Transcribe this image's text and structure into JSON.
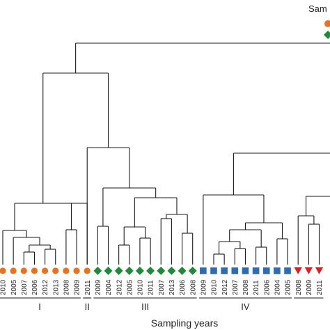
{
  "legend": {
    "title": "Sam",
    "markers": [
      {
        "shape": "circle",
        "color": "#e8731e"
      },
      {
        "shape": "diamond",
        "color": "#1f8a3a"
      }
    ]
  },
  "xlabel": "Sampling years",
  "groups": [
    "I",
    "II",
    "III",
    "IV"
  ],
  "colors": {
    "orange": "#e8731e",
    "green": "#1f8a3a",
    "blue": "#2f6db0",
    "red": "#e02020",
    "line": "#1a1a1a"
  },
  "leaves": [
    {
      "year": "2010",
      "shape": "circle",
      "color": "orange"
    },
    {
      "year": "2005",
      "shape": "circle",
      "color": "orange"
    },
    {
      "year": "2007",
      "shape": "circle",
      "color": "orange"
    },
    {
      "year": "2006",
      "shape": "circle",
      "color": "orange"
    },
    {
      "year": "2012",
      "shape": "circle",
      "color": "orange"
    },
    {
      "year": "2013",
      "shape": "circle",
      "color": "orange"
    },
    {
      "year": "2008",
      "shape": "circle",
      "color": "orange"
    },
    {
      "year": "2009",
      "shape": "circle",
      "color": "orange"
    },
    {
      "year": "2011",
      "shape": "circle",
      "color": "orange"
    },
    {
      "year": "2009",
      "shape": "diamond",
      "color": "green"
    },
    {
      "year": "2004",
      "shape": "diamond",
      "color": "green"
    },
    {
      "year": "2012",
      "shape": "diamond",
      "color": "green"
    },
    {
      "year": "2005",
      "shape": "diamond",
      "color": "green"
    },
    {
      "year": "2010",
      "shape": "diamond",
      "color": "green"
    },
    {
      "year": "2011",
      "shape": "diamond",
      "color": "green"
    },
    {
      "year": "2007",
      "shape": "diamond",
      "color": "green"
    },
    {
      "year": "2013",
      "shape": "diamond",
      "color": "green"
    },
    {
      "year": "2006",
      "shape": "diamond",
      "color": "green"
    },
    {
      "year": "2008",
      "shape": "diamond",
      "color": "green"
    },
    {
      "year": "2009",
      "shape": "square",
      "color": "blue"
    },
    {
      "year": "2010",
      "shape": "square",
      "color": "blue"
    },
    {
      "year": "2012",
      "shape": "square",
      "color": "blue"
    },
    {
      "year": "2007",
      "shape": "square",
      "color": "blue"
    },
    {
      "year": "2008",
      "shape": "square",
      "color": "blue"
    },
    {
      "year": "2011",
      "shape": "square",
      "color": "blue"
    },
    {
      "year": "2006",
      "shape": "square",
      "color": "blue"
    },
    {
      "year": "2004",
      "shape": "square",
      "color": "blue"
    },
    {
      "year": "2005",
      "shape": "square",
      "color": "blue"
    },
    {
      "year": "2008",
      "shape": "triangle",
      "color": "red"
    },
    {
      "year": "2009",
      "shape": "triangle",
      "color": "red"
    },
    {
      "year": "2011",
      "shape": "triangle",
      "color": "red"
    }
  ]
}
